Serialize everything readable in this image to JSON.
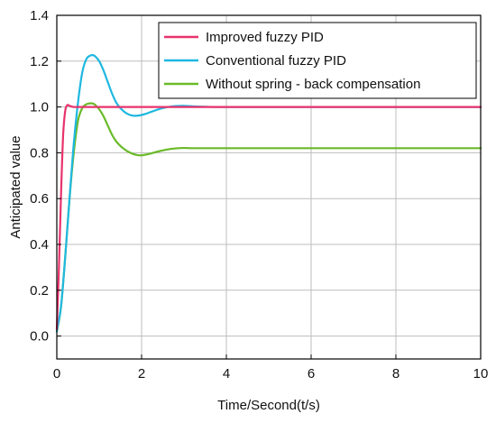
{
  "chart_data": {
    "type": "line",
    "title": "",
    "xlabel": "Time/Second(t/s)",
    "ylabel": "Anticipated value",
    "xlim": [
      0,
      10
    ],
    "ylim": [
      -0.1,
      1.4
    ],
    "xticks": [
      0,
      2,
      4,
      6,
      8,
      10
    ],
    "yticks": [
      0.0,
      0.2,
      0.4,
      0.6,
      0.8,
      1.0,
      1.2,
      1.4
    ],
    "xtick_labels": [
      "0",
      "2",
      "4",
      "6",
      "8",
      "10"
    ],
    "ytick_labels": [
      "0.0",
      "0.2",
      "0.4",
      "0.6",
      "0.8",
      "1.0",
      "1.2",
      "1.4"
    ],
    "grid": true,
    "legend_position": "top-right",
    "series": [
      {
        "name": "Improved fuzzy PID",
        "color": "#e8336d",
        "x": [
          0,
          0.05,
          0.1,
          0.15,
          0.2,
          0.25,
          0.3,
          0.4,
          0.5,
          0.7,
          1.0,
          2.0,
          4.0,
          6.0,
          8.0,
          10.0
        ],
        "y": [
          0.03,
          0.3,
          0.62,
          0.88,
          0.985,
          1.008,
          1.005,
          1.0,
          1.0,
          1.0,
          1.0,
          1.0,
          1.0,
          1.0,
          1.0,
          1.0
        ]
      },
      {
        "name": "Conventional fuzzy PID",
        "color": "#1fb8e0",
        "x": [
          0,
          0.1,
          0.2,
          0.3,
          0.4,
          0.5,
          0.6,
          0.7,
          0.8,
          0.85,
          0.9,
          1.0,
          1.1,
          1.2,
          1.3,
          1.4,
          1.5,
          1.6,
          1.7,
          1.8,
          1.9,
          2.0,
          2.1,
          2.2,
          2.4,
          2.6,
          2.8,
          3.0,
          3.2,
          3.5,
          4.0,
          6.0,
          8.0,
          10.0
        ],
        "y": [
          0.02,
          0.13,
          0.35,
          0.6,
          0.84,
          1.02,
          1.15,
          1.21,
          1.225,
          1.226,
          1.222,
          1.2,
          1.16,
          1.11,
          1.06,
          1.02,
          0.995,
          0.978,
          0.967,
          0.962,
          0.962,
          0.965,
          0.97,
          0.977,
          0.99,
          0.999,
          1.004,
          1.005,
          1.003,
          1.001,
          1.0,
          1.0,
          1.0,
          1.0
        ]
      },
      {
        "name": "Without spring - back compensation",
        "color": "#6aba28",
        "x": [
          0,
          0.1,
          0.2,
          0.3,
          0.4,
          0.5,
          0.6,
          0.7,
          0.8,
          0.85,
          0.9,
          1.0,
          1.1,
          1.2,
          1.3,
          1.4,
          1.5,
          1.6,
          1.7,
          1.8,
          1.9,
          2.0,
          2.1,
          2.2,
          2.4,
          2.6,
          2.8,
          3.0,
          3.2,
          3.5,
          4.0,
          6.0,
          8.0,
          10.0
        ],
        "y": [
          0.02,
          0.13,
          0.35,
          0.6,
          0.8,
          0.94,
          0.995,
          1.012,
          1.016,
          1.015,
          1.01,
          0.99,
          0.96,
          0.92,
          0.88,
          0.85,
          0.83,
          0.815,
          0.803,
          0.795,
          0.79,
          0.789,
          0.792,
          0.796,
          0.806,
          0.814,
          0.819,
          0.821,
          0.82,
          0.82,
          0.82,
          0.82,
          0.82,
          0.82
        ]
      }
    ]
  }
}
